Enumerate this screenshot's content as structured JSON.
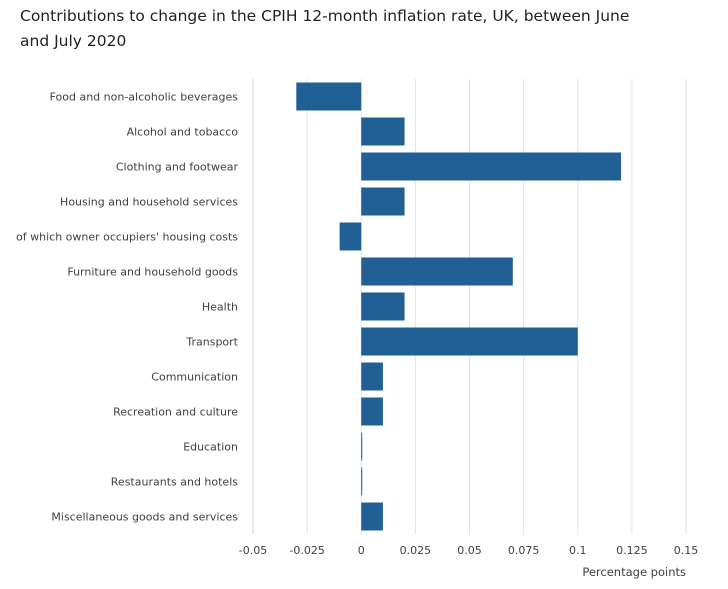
{
  "chart_data": {
    "type": "bar",
    "orientation": "horizontal",
    "title": "Contributions to change in the CPIH 12-month inflation rate, UK, between June and July 2020",
    "xlabel": "Percentage points",
    "ylabel": "",
    "categories": [
      "Food and non-alcoholic beverages",
      "Alcohol and tobacco",
      "Clothing and footwear",
      "Housing and household services",
      "of which owner occupiers' housing costs",
      "Furniture and household goods",
      "Health",
      "Transport",
      "Communication",
      "Recreation and culture",
      "Education",
      "Restaurants and hotels",
      "Miscellaneous goods and services"
    ],
    "values": [
      -0.03,
      0.02,
      0.12,
      0.02,
      -0.01,
      0.07,
      0.02,
      0.1,
      0.01,
      0.01,
      0.0,
      0.0,
      0.01
    ],
    "xlim": [
      -0.05,
      0.15
    ],
    "ticks": [
      "-0.05",
      "-0.025",
      "0",
      "0.025",
      "0.05",
      "0.075",
      "0.1",
      "0.125",
      "0.15"
    ],
    "tick_values": [
      -0.05,
      -0.025,
      0,
      0.025,
      0.05,
      0.075,
      0.1,
      0.125,
      0.15
    ],
    "grid": "vertical",
    "legend": "none",
    "bar_color": "#206095",
    "grid_color": "#dde3ee"
  }
}
